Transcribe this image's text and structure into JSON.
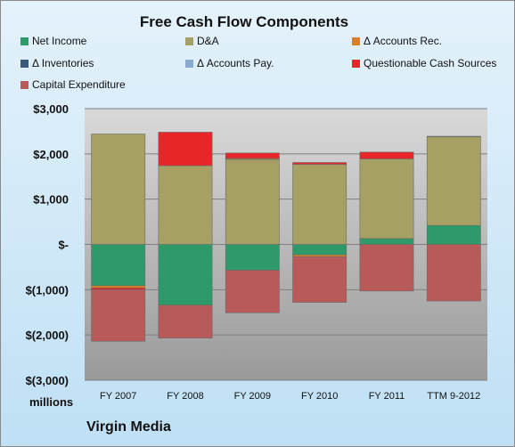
{
  "chart_data": {
    "type": "bar",
    "stacked": true,
    "title": "Free Cash Flow Components",
    "units_label": "millions",
    "company": "Virgin Media",
    "categories": [
      "FY 2007",
      "FY 2008",
      "FY 2009",
      "FY 2010",
      "FY 2011",
      "TTM 9-2012"
    ],
    "ylim": [
      -3000,
      3000
    ],
    "yticks": [
      3000,
      2000,
      1000,
      0,
      -1000,
      -2000,
      -3000
    ],
    "ytick_labels": [
      "$3,000",
      "$2,000",
      "$1,000",
      "$-",
      "$(1,000)",
      "$(2,000)",
      "$(3,000)"
    ],
    "grid": true,
    "legend_position": "top",
    "series": [
      {
        "name": "Net Income",
        "color": "#2e9a6a",
        "values": [
          -910,
          -1340,
          -570,
          -230,
          130,
          420
        ]
      },
      {
        "name": "D&A",
        "color": "#a6a065",
        "values": [
          2440,
          1740,
          1880,
          1770,
          1760,
          1960
        ]
      },
      {
        "name": "Δ Accounts Rec.",
        "color": "#d7821f",
        "values": [
          -50,
          0,
          20,
          -40,
          0,
          0
        ]
      },
      {
        "name": "Δ Inventories",
        "color": "#3a5a7c",
        "values": [
          0,
          0,
          0,
          0,
          0,
          0
        ]
      },
      {
        "name": "Δ Accounts Pay.",
        "color": "#8ba9cf",
        "values": [
          0,
          0,
          0,
          0,
          0,
          10
        ]
      },
      {
        "name": "Questionable Cash Sources",
        "color": "#e8262a",
        "values": [
          -40,
          740,
          120,
          40,
          150,
          0
        ]
      },
      {
        "name": "Capital Expenditure",
        "color": "#b85a5a",
        "values": [
          -1140,
          -730,
          -940,
          -1010,
          -1030,
          -1250
        ]
      }
    ]
  }
}
